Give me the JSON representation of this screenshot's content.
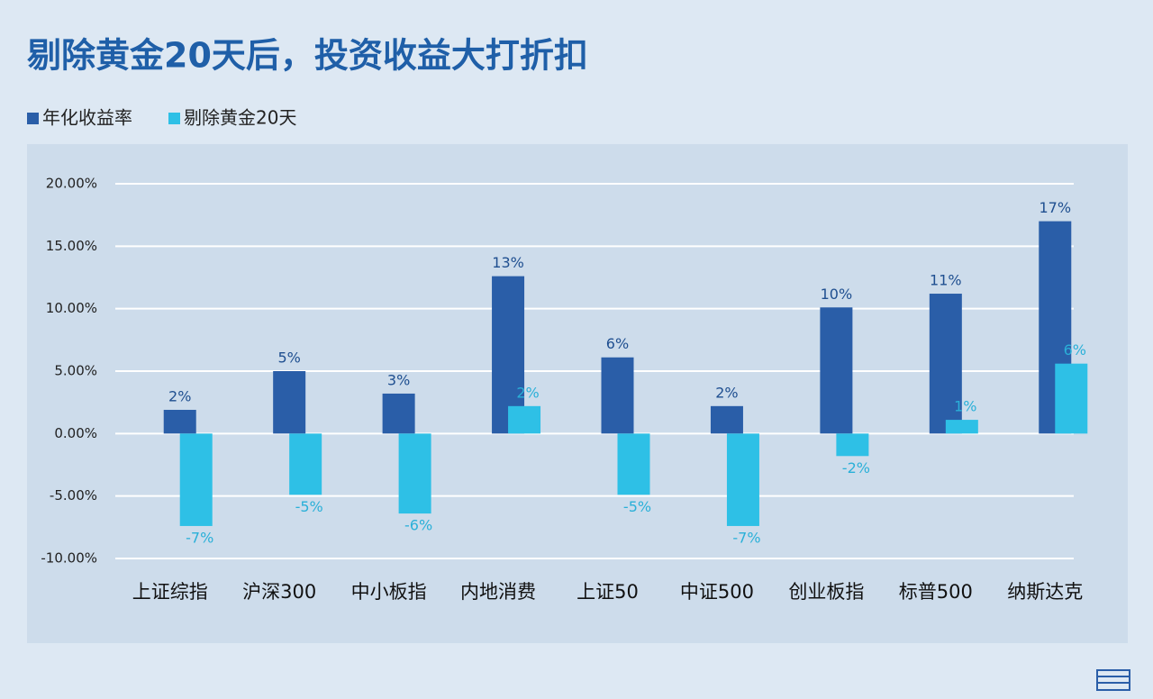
{
  "chart_data": {
    "type": "bar",
    "title": "剔除黄金20天后，投资收益大打折扣",
    "categories": [
      "上证综指",
      "沪深300",
      "中小板指",
      "内地消费",
      "上证50",
      "中证500",
      "创业板指",
      "标普500",
      "纳斯达克"
    ],
    "series": [
      {
        "name": "年化收益率",
        "color": "#2a5ea8",
        "values": [
          1.9,
          5.0,
          3.2,
          12.6,
          6.1,
          2.2,
          10.1,
          11.2,
          17.0
        ],
        "value_labels": [
          "2%",
          "5%",
          "3%",
          "13%",
          "6%",
          "2%",
          "10%",
          "11%",
          "17%"
        ]
      },
      {
        "name": "剔除黄金20天",
        "color": "#2ec0e6",
        "values": [
          -7.4,
          -4.9,
          -6.4,
          2.2,
          -4.9,
          -7.4,
          -1.8,
          1.1,
          5.6
        ],
        "value_labels": [
          "-7%",
          "-5%",
          "-6%",
          "2%",
          "-5%",
          "-7%",
          "-2%",
          "1%",
          "6%"
        ]
      }
    ],
    "ylim": [
      -10,
      20
    ],
    "yticks": [
      {
        "value": -10,
        "label": "-10.00%"
      },
      {
        "value": -5,
        "label": "-5.00%"
      },
      {
        "value": 0,
        "label": "0.00%"
      },
      {
        "value": 5,
        "label": "5.00%"
      },
      {
        "value": 10,
        "label": "10.00%"
      },
      {
        "value": 15,
        "label": "15.00%"
      },
      {
        "value": 20,
        "label": "20.00%"
      }
    ],
    "grid": true,
    "legend": "top-left"
  }
}
